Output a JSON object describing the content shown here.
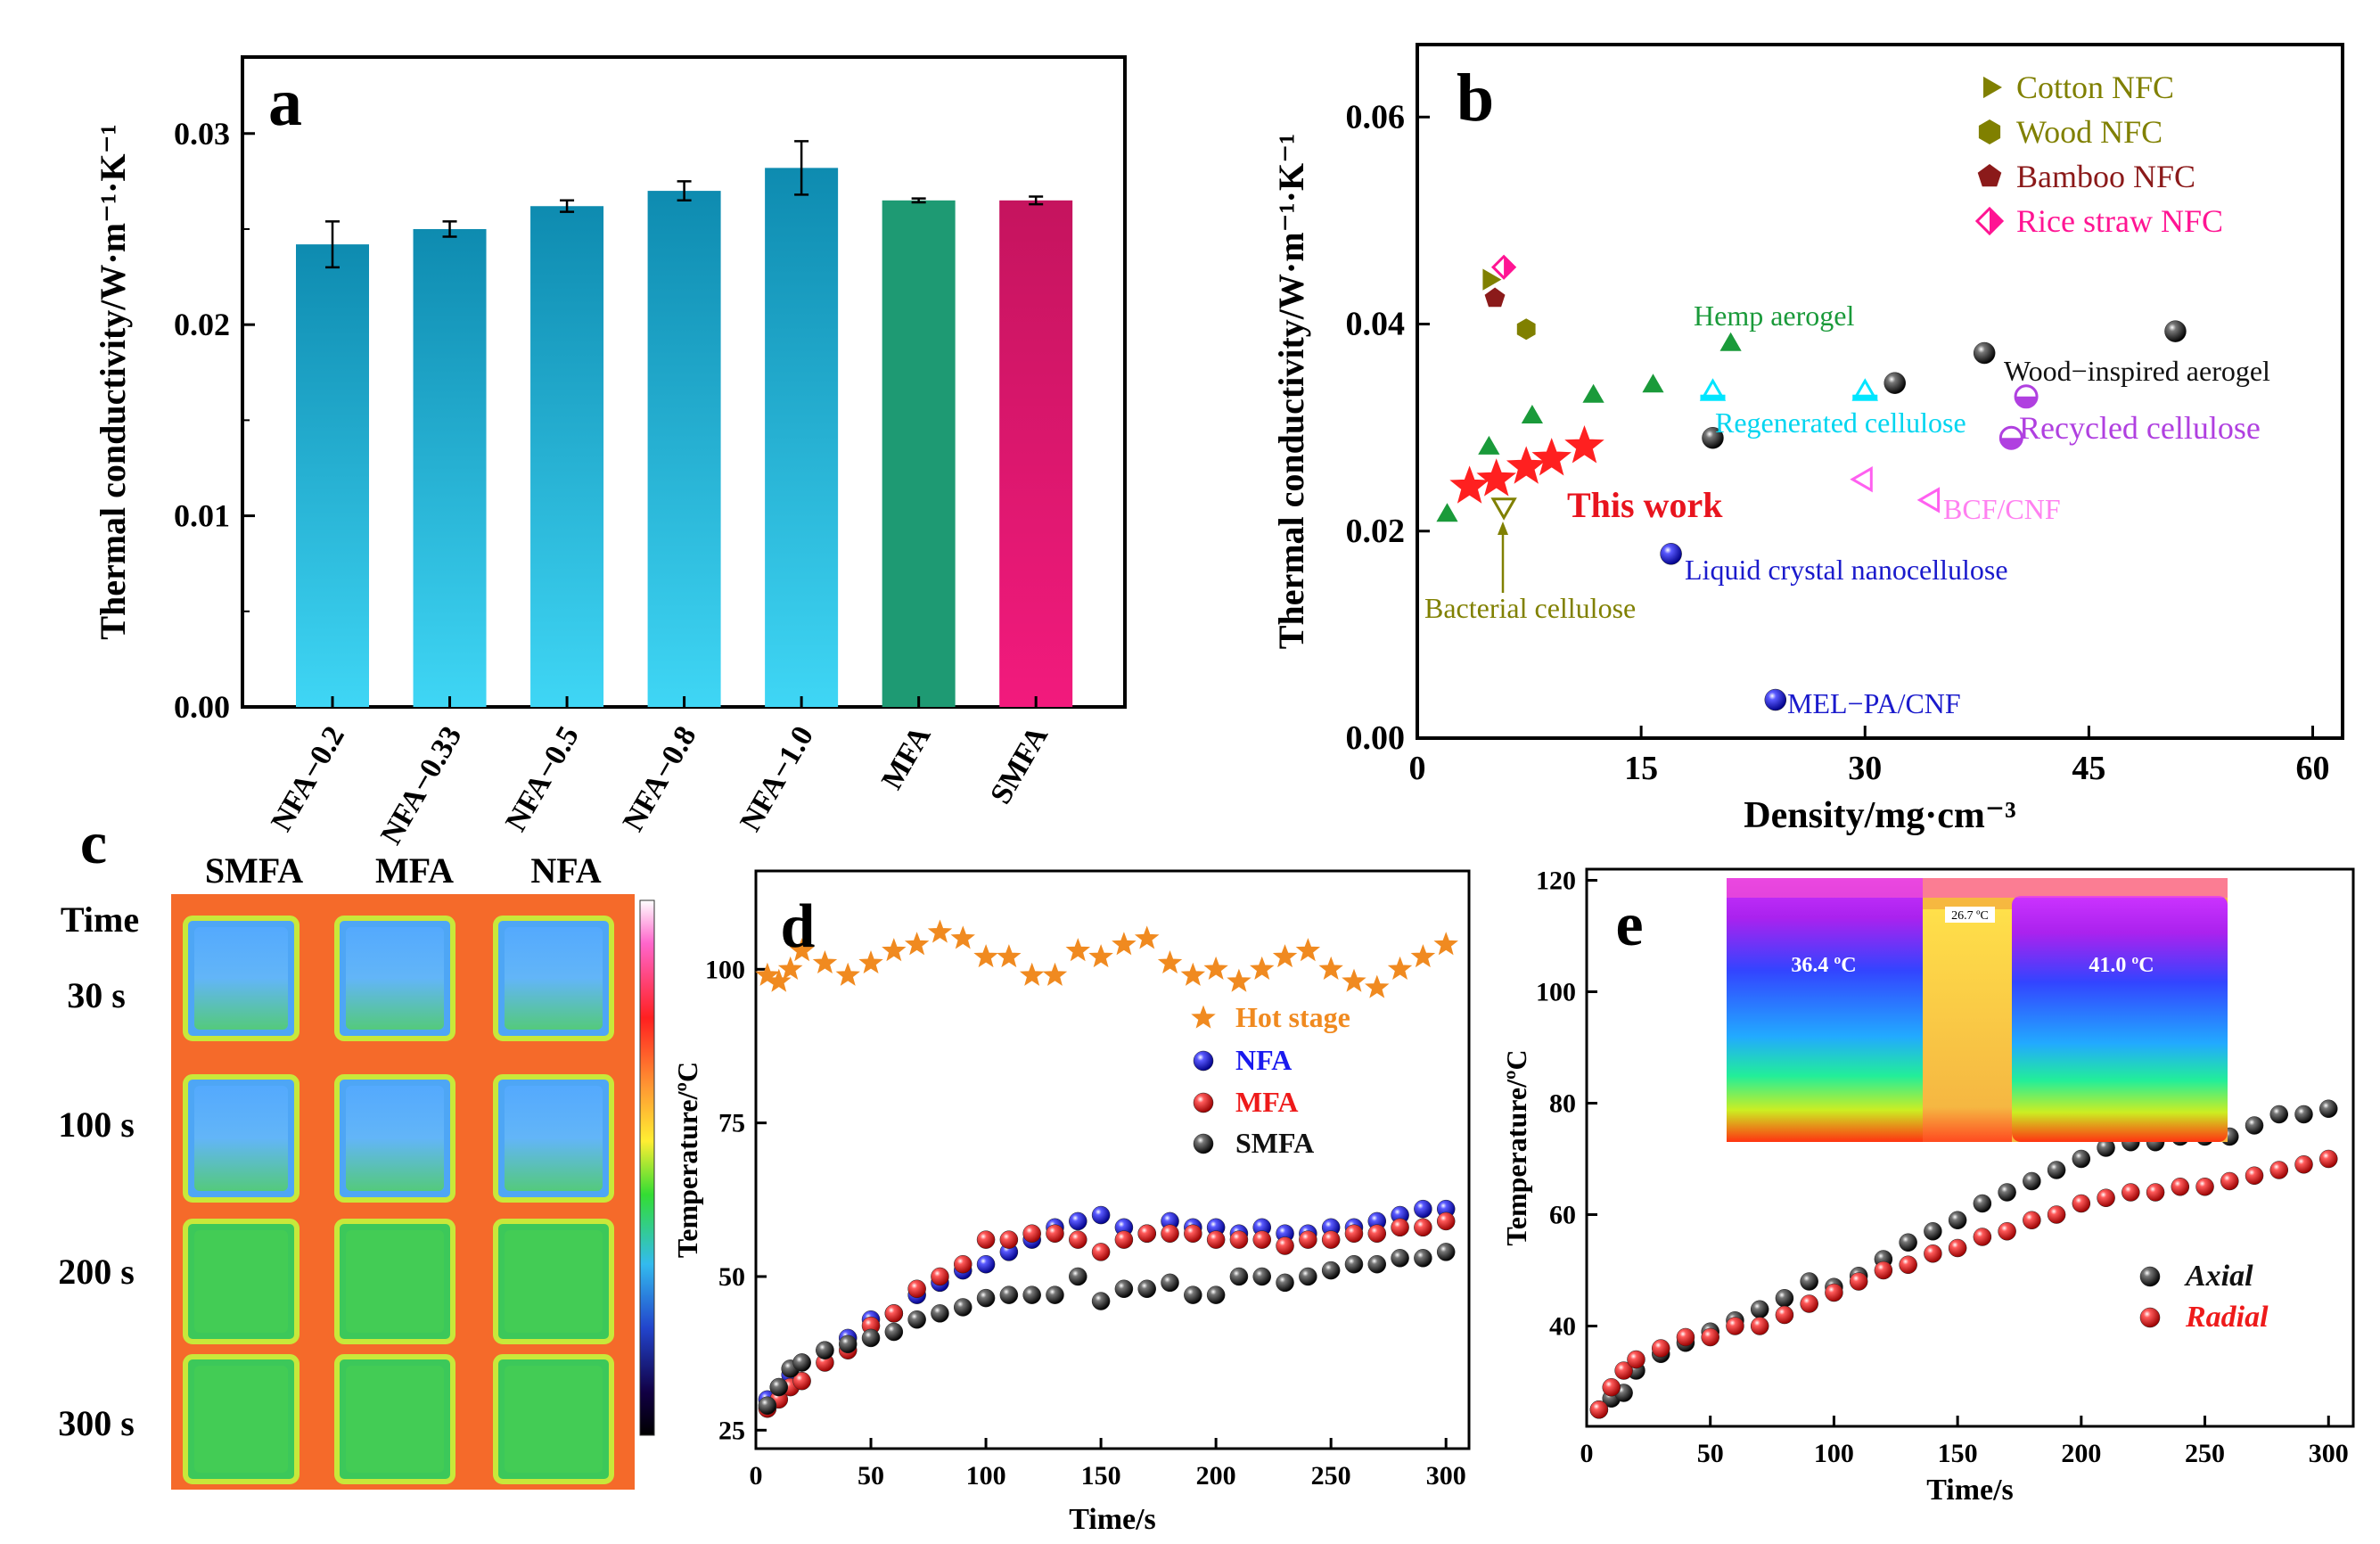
{
  "chart_data": [
    {
      "panel": "a",
      "type": "bar",
      "ylabel": "Thermal conductivity/W·m⁻¹·K⁻¹",
      "ylim": [
        0,
        0.034
      ],
      "yticks": [
        "0.00",
        "0.01",
        "0.02",
        "0.03"
      ],
      "categories": [
        "NFA−0.2",
        "NFA−0.33",
        "NFA−0.5",
        "NFA−0.8",
        "NFA−1.0",
        "MFA",
        "SMFA"
      ],
      "values": [
        0.0242,
        0.025,
        0.0262,
        0.027,
        0.0282,
        0.0265,
        0.0265
      ],
      "errors": [
        0.0012,
        0.0004,
        0.0003,
        0.0005,
        0.0014,
        0.0001,
        0.0002
      ],
      "bar_gradients": [
        [
          "#0e8bb0",
          "#3fd6f5"
        ],
        [
          "#0e8bb0",
          "#3fd6f5"
        ],
        [
          "#0e8bb0",
          "#3fd6f5"
        ],
        [
          "#0e8bb0",
          "#3fd6f5"
        ],
        [
          "#0e8bb0",
          "#3fd6f5"
        ],
        [
          "#1e9a73",
          "#1e9a73"
        ],
        [
          "#c5145e",
          "#f21a7d"
        ]
      ]
    },
    {
      "panel": "b",
      "type": "scatter",
      "xlabel": "Density/mg·cm⁻³",
      "ylabel": "Thermal conductivity/W·m⁻¹·K⁻¹",
      "xlim": [
        0,
        62
      ],
      "ylim": [
        0,
        0.067
      ],
      "xticks": [
        "0",
        "15",
        "30",
        "45",
        "60"
      ],
      "yticks": [
        "0.00",
        "0.02",
        "0.04",
        "0.06"
      ],
      "legend": [
        "Cotton NFC",
        "Wood NFC",
        "Bamboo NFC",
        "Rice straw  NFC"
      ],
      "legend_colors": [
        "#808000",
        "#808000",
        "#8b1a1a",
        "#ff1493"
      ],
      "series": [
        {
          "name": "This work",
          "marker": "star",
          "color": "#ff2020",
          "points": [
            [
              3.5,
              0.0243
            ],
            [
              5.3,
              0.025
            ],
            [
              7.3,
              0.0262
            ],
            [
              9.0,
              0.027
            ],
            [
              11.2,
              0.0282
            ]
          ]
        },
        {
          "name": "Hemp aerogel",
          "marker": "triangle",
          "color": "#1a9a3a",
          "points": [
            [
              2.0,
              0.0215
            ],
            [
              4.8,
              0.028
            ],
            [
              7.7,
              0.031
            ],
            [
              11.8,
              0.033
            ],
            [
              15.8,
              0.034
            ],
            [
              21.0,
              0.038
            ]
          ]
        },
        {
          "name": "Wood−inspired aerogel",
          "marker": "sphere",
          "color": "#222222",
          "points": [
            [
              19.8,
              0.029
            ],
            [
              32.0,
              0.0343
            ],
            [
              38.0,
              0.0372
            ],
            [
              50.8,
              0.0393
            ]
          ]
        },
        {
          "name": "Regenerated cellulose",
          "marker": "triangle-half",
          "color": "#00e5ff",
          "points": [
            [
              19.8,
              0.0333
            ],
            [
              30.0,
              0.0333
            ]
          ]
        },
        {
          "name": "Recycled cellulose",
          "marker": "circle-half",
          "color": "#b040e0",
          "points": [
            [
              39.8,
              0.029
            ],
            [
              40.8,
              0.033
            ]
          ]
        },
        {
          "name": "BCF/CNF",
          "marker": "triangle-left",
          "color": "#ff60f0",
          "points": [
            [
              30.0,
              0.025
            ],
            [
              34.5,
              0.023
            ]
          ]
        },
        {
          "name": "Liquid crystal nanocellulose",
          "marker": "sphere",
          "color": "#1a1acc",
          "points": [
            [
              17.0,
              0.0178
            ]
          ]
        },
        {
          "name": "MEL−PA/CNF",
          "marker": "sphere",
          "color": "#1a1acc",
          "points": [
            [
              24.0,
              0.0037
            ]
          ]
        },
        {
          "name": "Bacterial cellulose",
          "marker": "triangle-down",
          "color": "#808000",
          "points": [
            [
              5.8,
              0.0225
            ]
          ]
        },
        {
          "name": "Cotton NFC",
          "marker": "triangle-right",
          "color": "#808000",
          "points": [
            [
              4.8,
              0.0443
            ]
          ]
        },
        {
          "name": "Wood NFC",
          "marker": "hexagon",
          "color": "#808000",
          "points": [
            [
              7.3,
              0.0395
            ]
          ]
        },
        {
          "name": "Bamboo NFC",
          "marker": "pentagon",
          "color": "#8b1a1a",
          "points": [
            [
              5.2,
              0.0425
            ]
          ]
        },
        {
          "name": "Rice straw  NFC",
          "marker": "diamond-half",
          "color": "#ff1493",
          "points": [
            [
              5.8,
              0.0455
            ]
          ]
        }
      ],
      "annotations": [
        "This work",
        "Hemp aerogel",
        "Wood−inspired aerogel",
        "Regenerated cellulose",
        "Recycled cellulose",
        "BCF/CNF",
        "Liquid crystal nanocellulose",
        "MEL−PA/CNF",
        "Bacterial cellulose"
      ]
    },
    {
      "panel": "c",
      "type": "image-grid",
      "columns": [
        "SMFA",
        "MFA",
        "NFA"
      ],
      "rows": [
        "30 s",
        "100 s",
        "200 s",
        "300 s"
      ],
      "row_header": "Time"
    },
    {
      "panel": "d",
      "type": "scatter",
      "xlabel": "Time/s",
      "ylabel": "Temperature/ºC",
      "xlim": [
        0,
        310
      ],
      "ylim": [
        22,
        116
      ],
      "xticks": [
        "0",
        "50",
        "100",
        "150",
        "200",
        "250",
        "300"
      ],
      "yticks": [
        "25",
        "50",
        "75",
        "100"
      ],
      "series": [
        {
          "name": "Hot stage",
          "marker": "star",
          "color": "#f08a20",
          "x": [
            5,
            10,
            15,
            20,
            30,
            40,
            50,
            60,
            70,
            80,
            90,
            100,
            110,
            120,
            130,
            140,
            150,
            160,
            170,
            180,
            190,
            200,
            210,
            220,
            230,
            240,
            250,
            260,
            270,
            280,
            290,
            300
          ],
          "y": [
            99,
            98,
            100,
            103,
            101,
            99,
            101,
            103,
            104,
            106,
            105,
            102,
            102,
            99,
            99,
            103,
            102,
            104,
            105,
            101,
            99,
            100,
            98,
            100,
            102,
            103,
            100,
            98,
            97,
            100,
            102,
            104
          ]
        },
        {
          "name": "NFA",
          "marker": "sphere",
          "color": "#1a1aee",
          "x": [
            5,
            10,
            15,
            20,
            30,
            40,
            50,
            60,
            70,
            80,
            90,
            100,
            110,
            120,
            130,
            140,
            150,
            160,
            170,
            180,
            190,
            200,
            210,
            220,
            230,
            240,
            250,
            260,
            270,
            280,
            290,
            300
          ],
          "y": [
            30,
            32,
            34,
            36,
            38,
            40,
            43,
            44,
            47,
            49,
            51,
            52,
            54,
            56,
            58,
            59,
            60,
            58,
            57,
            59,
            58,
            58,
            57,
            58,
            57,
            57,
            58,
            58,
            59,
            60,
            61,
            61
          ]
        },
        {
          "name": "MFA",
          "marker": "sphere",
          "color": "#ee1a1a",
          "x": [
            5,
            10,
            15,
            20,
            30,
            40,
            50,
            60,
            70,
            80,
            90,
            100,
            110,
            120,
            130,
            140,
            150,
            160,
            170,
            180,
            190,
            200,
            210,
            220,
            230,
            240,
            250,
            260,
            270,
            280,
            290,
            300
          ],
          "y": [
            28.5,
            30,
            32,
            33,
            36,
            38,
            42,
            44,
            48,
            50,
            52,
            56,
            56,
            57,
            57,
            56,
            54,
            56,
            57,
            57,
            57,
            56,
            56,
            56,
            55,
            56,
            56,
            57,
            57,
            58,
            58,
            59
          ]
        },
        {
          "name": "SMFA",
          "marker": "sphere",
          "color": "#111111",
          "x": [
            5,
            10,
            15,
            20,
            30,
            40,
            50,
            60,
            70,
            80,
            90,
            100,
            110,
            120,
            130,
            140,
            150,
            160,
            170,
            180,
            190,
            200,
            210,
            220,
            230,
            240,
            250,
            260,
            270,
            280,
            290,
            300
          ],
          "y": [
            29,
            32,
            35,
            36,
            38,
            39,
            40,
            41,
            43,
            44,
            45,
            46.5,
            47,
            47,
            47,
            50,
            46,
            48,
            48,
            49,
            47,
            47,
            50,
            50,
            49,
            50,
            51,
            52,
            52,
            53,
            53,
            54
          ]
        }
      ]
    },
    {
      "panel": "e",
      "type": "scatter",
      "xlabel": "Time/s",
      "ylabel": "Temperature/ºC",
      "xlim": [
        0,
        310
      ],
      "ylim": [
        22,
        122
      ],
      "xticks": [
        "0",
        "50",
        "100",
        "150",
        "200",
        "250",
        "300"
      ],
      "yticks": [
        "40",
        "60",
        "80",
        "100",
        "120"
      ],
      "series": [
        {
          "name": "Axial",
          "marker": "sphere",
          "color": "#111111",
          "x": [
            5,
            10,
            15,
            20,
            30,
            40,
            50,
            60,
            70,
            80,
            90,
            100,
            110,
            120,
            130,
            140,
            150,
            160,
            170,
            180,
            190,
            200,
            210,
            220,
            230,
            240,
            250,
            260,
            270,
            280,
            290,
            300
          ],
          "y": [
            25,
            27,
            28,
            32,
            35,
            37,
            39,
            41,
            43,
            45,
            48,
            47,
            49,
            52,
            55,
            57,
            59,
            62,
            64,
            66,
            68,
            70,
            72,
            73,
            73,
            74,
            74,
            74,
            76,
            78,
            78,
            79
          ]
        },
        {
          "name": "Radial",
          "marker": "sphere",
          "color": "#ee1a1a",
          "x": [
            5,
            10,
            15,
            20,
            30,
            40,
            50,
            60,
            70,
            80,
            90,
            100,
            110,
            120,
            130,
            140,
            150,
            160,
            170,
            180,
            190,
            200,
            210,
            220,
            230,
            240,
            250,
            260,
            270,
            280,
            290,
            300
          ],
          "y": [
            25,
            29,
            32,
            34,
            36,
            38,
            38,
            40,
            40,
            42,
            44,
            46,
            48,
            50,
            51,
            53,
            54,
            56,
            57,
            59,
            60,
            62,
            63,
            64,
            64,
            65,
            65,
            66,
            67,
            68,
            69,
            70
          ]
        }
      ],
      "inset_labels": [
        "36.4 ºC",
        "26.7 ºC",
        "41.0 ºC"
      ]
    }
  ],
  "panel_labels": [
    "a",
    "b",
    "c",
    "d",
    "e"
  ]
}
